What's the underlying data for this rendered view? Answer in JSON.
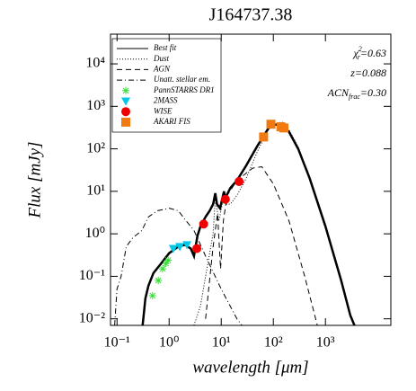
{
  "chart_data": {
    "type": "line",
    "title": "J164737.38",
    "xlabel": "wavelength [μm]",
    "ylabel": "Flux [mJy]",
    "xscale": "log",
    "yscale": "log",
    "xlim": [
      0.075,
      18000
    ],
    "ylim": [
      0.007,
      50000
    ],
    "xticks": [
      {
        "value": 0.1,
        "label": "10⁻¹"
      },
      {
        "value": 1,
        "label": "10⁰"
      },
      {
        "value": 10,
        "label": "10¹"
      },
      {
        "value": 100,
        "label": "10²"
      },
      {
        "value": 1000,
        "label": "10³"
      }
    ],
    "yticks": [
      {
        "value": 0.01,
        "label": "10⁻²"
      },
      {
        "value": 0.1,
        "label": "10⁻¹"
      },
      {
        "value": 1,
        "label": "10⁰"
      },
      {
        "value": 10,
        "label": "10¹"
      },
      {
        "value": 100,
        "label": "10²"
      },
      {
        "value": 1000,
        "label": "10³"
      },
      {
        "value": 10000,
        "label": "10⁴"
      }
    ],
    "annotations": [
      {
        "symbol": "χ",
        "sup": "2",
        "sub": "r",
        "text": "=0.63"
      },
      {
        "text": "z=0.088"
      },
      {
        "symbol": "ACN",
        "sub": "frac",
        "text": "=0.30"
      }
    ],
    "legend": "upper left",
    "series": [
      {
        "name": "Best fit",
        "color": "#000000",
        "style": "solid",
        "width": 2.5,
        "x": [
          0.31,
          0.32,
          0.35,
          0.4,
          0.5,
          0.7,
          1,
          1.5,
          2,
          2.6,
          3,
          3.5,
          4,
          5,
          6,
          7,
          7.7,
          8.3,
          9.5,
          11.3,
          12,
          15,
          20,
          30,
          50,
          80,
          100,
          150,
          200,
          300,
          500,
          1000,
          2000,
          3000,
          3600
        ],
        "values": [
          0.007,
          0.01,
          0.03,
          0.06,
          0.12,
          0.2,
          0.35,
          0.5,
          0.55,
          0.45,
          0.3,
          0.9,
          1.5,
          2.5,
          3.5,
          5,
          9,
          5,
          4,
          10,
          7,
          12,
          18,
          40,
          120,
          300,
          380,
          350,
          250,
          100,
          20,
          1.5,
          0.08,
          0.012,
          0.007
        ]
      },
      {
        "name": "Dust",
        "color": "#000000",
        "style": "dotted",
        "width": 1,
        "x": [
          3,
          4,
          5,
          7,
          7.7,
          9,
          11.3,
          12,
          15,
          20,
          30,
          50,
          80,
          100,
          150,
          200,
          300,
          500,
          1000,
          2000,
          3000,
          3600
        ],
        "values": [
          0.007,
          0.02,
          0.1,
          1,
          7,
          2,
          8,
          5,
          5,
          8,
          20,
          90,
          280,
          400,
          420,
          280,
          110,
          22,
          1.6,
          0.085,
          0.013,
          0.007
        ]
      },
      {
        "name": "AGN",
        "color": "#000000",
        "style": "dashed",
        "width": 1,
        "x": [
          5,
          7,
          8.5,
          9.7,
          11,
          13,
          20,
          40,
          60,
          100,
          200,
          400,
          700
        ],
        "values": [
          0.01,
          0.5,
          3,
          0.15,
          2,
          8,
          18,
          35,
          38,
          15,
          2,
          0.1,
          0.007
        ]
      },
      {
        "name": "Unatt. stellar em.",
        "color": "#000000",
        "style": "dashdot",
        "width": 1,
        "x": [
          0.09,
          0.1,
          0.12,
          0.15,
          0.2,
          0.3,
          0.4,
          0.6,
          1,
          1.5,
          2,
          3,
          5,
          10,
          20,
          25
        ],
        "values": [
          0.007,
          0.05,
          0.1,
          0.5,
          0.8,
          1.2,
          2.5,
          3.5,
          4,
          3.5,
          2.2,
          1.2,
          0.3,
          0.05,
          0.01,
          0.007
        ]
      },
      {
        "name": "PannSTARRS DR1",
        "color": "#33dd33",
        "marker": "asterisk",
        "x": [
          0.48,
          0.62,
          0.75,
          0.87,
          0.96
        ],
        "values": [
          0.035,
          0.08,
          0.15,
          0.2,
          0.24
        ]
      },
      {
        "name": "2MASS",
        "color": "#00c8e6",
        "marker": "triangle",
        "x": [
          1.2,
          1.6,
          2.2
        ],
        "values": [
          0.45,
          0.5,
          0.55
        ]
      },
      {
        "name": "WISE",
        "color": "#ee0000",
        "marker": "circle",
        "x": [
          3.4,
          4.6,
          12,
          22
        ],
        "values": [
          0.45,
          1.7,
          6.5,
          17
        ]
      },
      {
        "name": "AKARI FIS",
        "color": "#f07a10",
        "marker": "square",
        "x": [
          65,
          90,
          140,
          160
        ],
        "values": [
          190,
          380,
          330,
          310
        ]
      }
    ]
  }
}
